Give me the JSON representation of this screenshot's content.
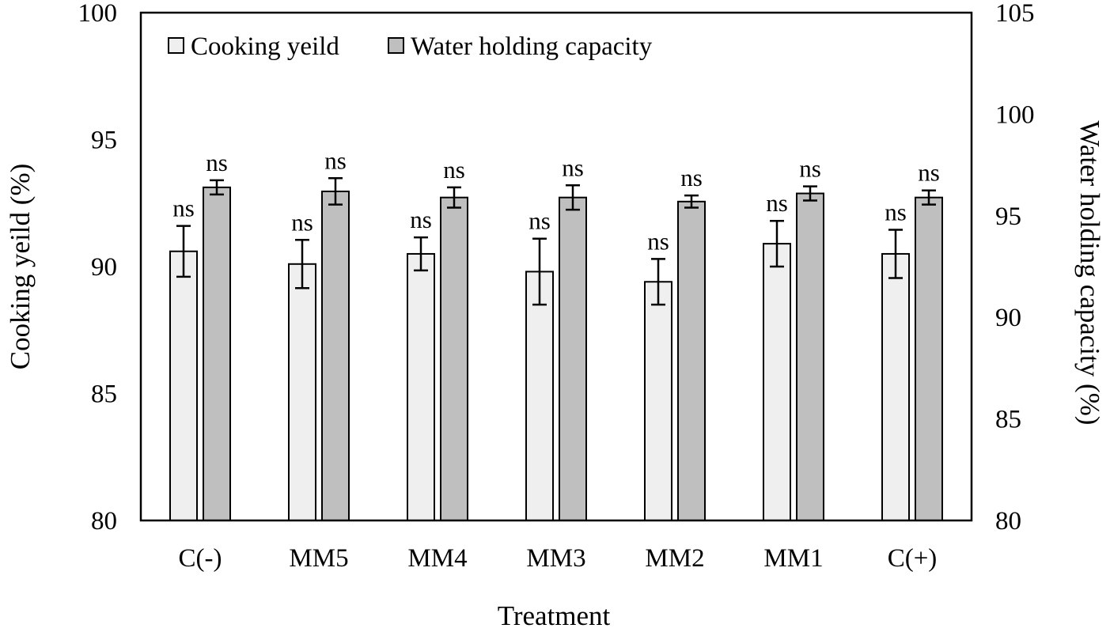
{
  "chart_data": {
    "type": "bar",
    "categories": [
      "C(-)",
      "MM5",
      "MM4",
      "MM3",
      "MM2",
      "MM1",
      "C(+)"
    ],
    "xlabel": "Treatment",
    "ylabel_left": "Cooking yeild (%)",
    "ylabel_right": "Water holding capacity (%)",
    "ylim_left": [
      80,
      100
    ],
    "ylim_right": [
      80,
      105
    ],
    "yticks_left": [
      80,
      85,
      90,
      95,
      100
    ],
    "yticks_right": [
      80,
      85,
      90,
      95,
      100,
      105
    ],
    "grid": false,
    "legend_position": "top-left",
    "series": [
      {
        "name": "Cooking yeild",
        "axis": "left",
        "color": "#efefef",
        "values": [
          90.6,
          90.1,
          90.5,
          89.8,
          89.4,
          90.9,
          90.5
        ],
        "errors": [
          1.0,
          0.95,
          0.65,
          1.3,
          0.9,
          0.9,
          0.95
        ],
        "annotations": [
          "ns",
          "ns",
          "ns",
          "ns",
          "ns",
          "ns",
          "ns"
        ]
      },
      {
        "name": "Water holding capacity",
        "axis": "right",
        "color": "#bfbfbf",
        "values": [
          96.4,
          96.2,
          95.9,
          95.9,
          95.7,
          96.1,
          95.9
        ],
        "errors": [
          0.35,
          0.65,
          0.5,
          0.6,
          0.3,
          0.35,
          0.35
        ],
        "annotations": [
          "ns",
          "ns",
          "ns",
          "ns",
          "ns",
          "ns",
          "ns"
        ]
      }
    ]
  }
}
